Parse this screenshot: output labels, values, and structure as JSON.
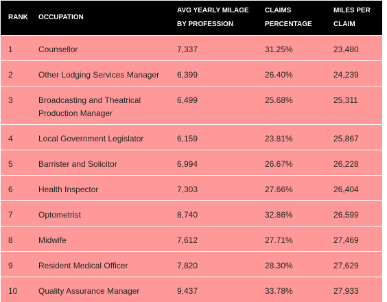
{
  "headers": {
    "rank": "RANK",
    "occupation": "OCCUPATION",
    "avg_line1": "AVG YEARLY MILAGE",
    "avg_line2": "BY PROFESSION",
    "claims_line1": "CLAIMS",
    "claims_line2": "PERCENTAGE",
    "miles_line1": "MILES PER",
    "miles_line2": "CLAIM"
  },
  "rows": [
    {
      "rank": "1",
      "occupation": "Counsellor",
      "avg": "7,337",
      "claims": "31.25%",
      "miles": "23,480"
    },
    {
      "rank": "2",
      "occupation": "Other Lodging Services Manager",
      "avg": "6,399",
      "claims": "26.40%",
      "miles": "24,239"
    },
    {
      "rank": "3",
      "occupation": "Broadcasting and Theatrical Production Manager",
      "avg": "6,499",
      "claims": "25.68%",
      "miles": "25,311"
    },
    {
      "rank": "4",
      "occupation": "Local Government Legislator",
      "avg": "6,159",
      "claims": "23.81%",
      "miles": "25,867"
    },
    {
      "rank": "5",
      "occupation": "Barrister and Solicitor",
      "avg": "6,994",
      "claims": "26.67%",
      "miles": "26,228"
    },
    {
      "rank": "6",
      "occupation": "Health Inspector",
      "avg": "7,303",
      "claims": "27.66%",
      "miles": "26,404"
    },
    {
      "rank": "7",
      "occupation": "Optometrist",
      "avg": "8,740",
      "claims": "32.86%",
      "miles": "26,599"
    },
    {
      "rank": "8",
      "occupation": "Midwife",
      "avg": "7,612",
      "claims": "27.71%",
      "miles": "27,469"
    },
    {
      "rank": "9",
      "occupation": "Resident Medical Officer",
      "avg": "7,820",
      "claims": "28.30%",
      "miles": "27,629"
    },
    {
      "rank": "10",
      "occupation": "Quality Assurance Manager",
      "avg": "9,437",
      "claims": "33.78%",
      "miles": "27,933"
    }
  ]
}
